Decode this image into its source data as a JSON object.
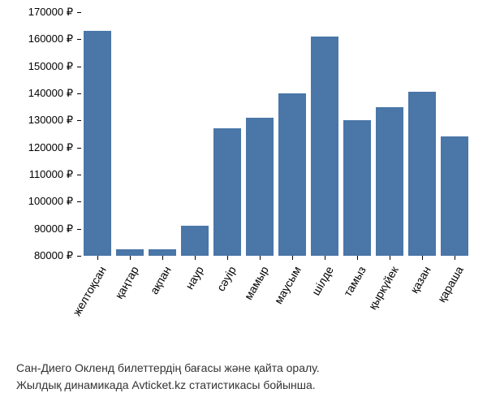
{
  "chart": {
    "type": "bar",
    "categories": [
      "желтоқсан",
      "қаңтар",
      "ақпан",
      "наур",
      "сәуір",
      "мамыр",
      "маусым",
      "шілде",
      "тамыз",
      "қыркүйек",
      "қазан",
      "қараша"
    ],
    "values": [
      163000,
      82500,
      82500,
      91000,
      127000,
      131000,
      140000,
      161000,
      130000,
      135000,
      140500,
      124000
    ],
    "bar_color": "#4a76a8",
    "background_color": "#ffffff",
    "ylim_min": 80000,
    "ylim_max": 170000,
    "yticks": [
      80000,
      90000,
      100000,
      110000,
      120000,
      130000,
      140000,
      150000,
      160000,
      170000
    ],
    "ytick_labels": [
      "80000 ₽",
      "90000 ₽",
      "100000 ₽",
      "110000 ₽",
      "120000 ₽",
      "130000 ₽",
      "140000 ₽",
      "150000 ₽",
      "160000 ₽",
      "170000 ₽"
    ],
    "y_label_fontsize": 13,
    "x_label_fontsize": 14,
    "x_label_rotation": -60,
    "bar_gap_ratio": 0.15
  },
  "caption": {
    "line1": "Сан-Диего Окленд билеттердің бағасы және қайта оралу.",
    "line2": "Жылдық динамикада Avticket.kz статистикасы бойынша."
  }
}
